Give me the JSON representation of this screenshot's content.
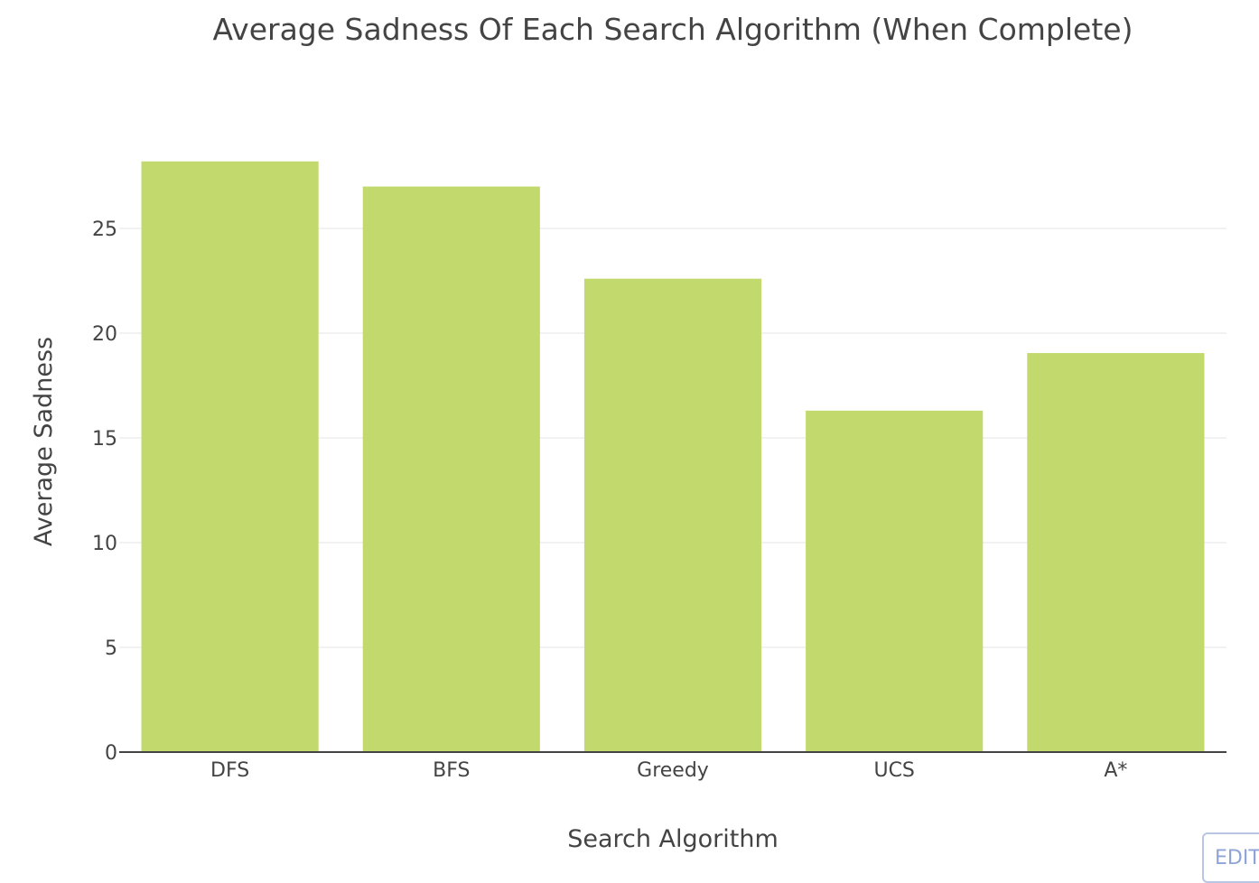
{
  "chart_data": {
    "type": "bar",
    "title": "Average Sadness Of Each Search Algorithm (When Complete)",
    "xlabel": "Search Algorithm",
    "ylabel": "Average Sadness",
    "categories": [
      "DFS",
      "BFS",
      "Greedy",
      "UCS",
      "A*"
    ],
    "values": [
      28.2,
      27.0,
      22.6,
      16.3,
      19.05
    ],
    "ylim": [
      0,
      30
    ],
    "yticks": [
      0,
      5,
      10,
      15,
      20,
      25
    ],
    "grid": true,
    "legend": "none",
    "colors": {
      "bar": "#c2d96e",
      "grid": "#eeeeee",
      "axis": "#444444",
      "text": "#444444"
    }
  },
  "toolbar": {
    "edit_label": "EDIT"
  }
}
